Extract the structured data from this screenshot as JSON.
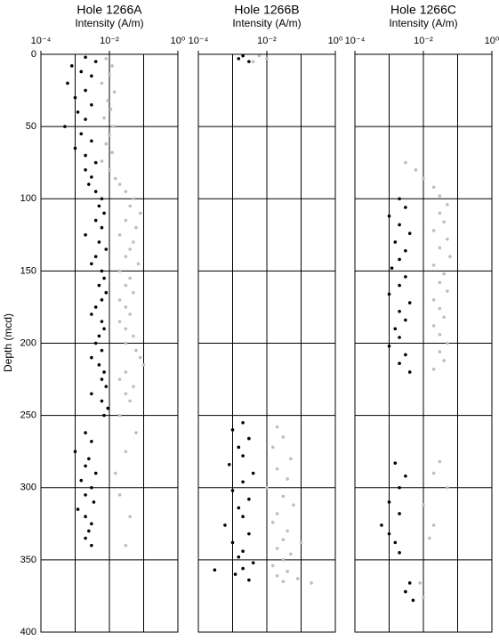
{
  "chart_data": [
    {
      "type": "scatter",
      "title": "Hole 1266A",
      "xlabel": "Intensity (A/m)",
      "ylabel": "Depth (mcd)",
      "xscale": "log",
      "xlim": [
        0.0001,
        1
      ],
      "xticks": [
        {
          "value": 0.0001,
          "label": "10⁻⁴"
        },
        {
          "value": 0.01,
          "label": "10⁻²"
        },
        {
          "value": 1,
          "label": "10⁰"
        }
      ],
      "xgrid": [
        0.001,
        0.01,
        0.1
      ],
      "ylim": [
        0,
        400
      ],
      "y_inverted": true,
      "yticks": [
        0,
        50,
        100,
        150,
        200,
        250,
        300,
        350,
        400
      ],
      "grid": true,
      "series": [
        {
          "color": "#bdbdbd",
          "x": [
            0.008,
            0.012,
            0.01,
            0.006,
            0.014,
            0.009,
            0.011,
            0.007,
            0.013,
            0.01,
            0.008,
            0.012,
            0.006,
            0.01,
            0.015,
            0.02,
            0.03,
            0.05,
            0.04,
            0.08,
            0.03,
            0.06,
            0.02,
            0.05,
            0.04,
            0.03,
            0.07,
            0.02,
            0.04,
            0.03,
            0.05,
            0.02,
            0.03,
            0.04,
            0.02,
            0.03,
            0.05,
            0.03,
            0.06,
            0.08,
            0.1,
            0.03,
            0.02,
            0.05,
            0.03,
            0.04,
            0.02,
            0.06,
            0.03,
            0.015,
            0.02,
            0.04,
            0.03
          ],
          "y": [
            3,
            8,
            14,
            20,
            26,
            32,
            38,
            44,
            50,
            56,
            62,
            68,
            74,
            80,
            86,
            90,
            95,
            100,
            105,
            110,
            115,
            120,
            125,
            130,
            135,
            140,
            145,
            150,
            155,
            160,
            165,
            170,
            175,
            180,
            185,
            190,
            195,
            200,
            205,
            210,
            215,
            220,
            225,
            230,
            235,
            240,
            250,
            262,
            275,
            290,
            305,
            320,
            340
          ]
        },
        {
          "color": "#000000",
          "x": [
            0.002,
            0.004,
            0.0008,
            0.0015,
            0.003,
            0.0006,
            0.002,
            0.001,
            0.003,
            0.0012,
            0.002,
            0.0005,
            0.0015,
            0.003,
            0.001,
            0.002,
            0.004,
            0.002,
            0.003,
            0.0025,
            0.004,
            0.006,
            0.005,
            0.007,
            0.004,
            0.006,
            0.002,
            0.005,
            0.008,
            0.004,
            0.003,
            0.006,
            0.007,
            0.005,
            0.008,
            0.006,
            0.004,
            0.003,
            0.006,
            0.007,
            0.005,
            0.004,
            0.006,
            0.003,
            0.005,
            0.007,
            0.006,
            0.008,
            0.003,
            0.006,
            0.009,
            0.007,
            0.002,
            0.003,
            0.001,
            0.0025,
            0.002,
            0.004,
            0.0015,
            0.003,
            0.002,
            0.0035,
            0.0012,
            0.002,
            0.003,
            0.0025,
            0.002,
            0.003
          ],
          "y": [
            2,
            5,
            8,
            12,
            15,
            20,
            25,
            30,
            35,
            40,
            45,
            50,
            55,
            60,
            65,
            70,
            75,
            80,
            85,
            90,
            95,
            100,
            105,
            110,
            115,
            120,
            125,
            130,
            135,
            140,
            145,
            150,
            155,
            160,
            165,
            170,
            175,
            180,
            185,
            190,
            195,
            200,
            205,
            210,
            215,
            220,
            225,
            230,
            235,
            240,
            245,
            250,
            262,
            268,
            275,
            280,
            285,
            290,
            295,
            300,
            305,
            310,
            315,
            320,
            325,
            330,
            335,
            340
          ]
        }
      ]
    },
    {
      "type": "scatter",
      "title": "Hole 1266B",
      "xlabel": "Intensity (A/m)",
      "xscale": "log",
      "xlim": [
        0.0001,
        1
      ],
      "xticks": [
        {
          "value": 0.0001,
          "label": "10⁻⁴"
        },
        {
          "value": 0.01,
          "label": "10⁻²"
        },
        {
          "value": 1,
          "label": "10⁰"
        }
      ],
      "xgrid": [
        0.001,
        0.01,
        0.1
      ],
      "ylim": [
        0,
        400
      ],
      "y_inverted": true,
      "yticks": [
        50,
        100,
        150,
        200,
        250,
        300,
        350
      ],
      "grid": true,
      "series": [
        {
          "color": "#bdbdbd",
          "x": [
            0.006,
            0.01,
            0.004,
            0.02,
            0.03,
            0.015,
            0.05,
            0.02,
            0.04,
            0.01,
            0.03,
            0.06,
            0.02,
            0.015,
            0.04,
            0.03,
            0.1,
            0.02,
            0.05,
            0.03,
            0.015,
            0.04,
            0.02,
            0.08,
            0.03,
            0.2
          ],
          "y": [
            1,
            3,
            5,
            258,
            265,
            272,
            280,
            287,
            294,
            300,
            306,
            312,
            318,
            324,
            330,
            336,
            338,
            342,
            346,
            350,
            354,
            358,
            361,
            363,
            365,
            366
          ]
        },
        {
          "color": "#000000",
          "x": [
            0.002,
            0.0015,
            0.003,
            0.002,
            0.001,
            0.003,
            0.0015,
            0.002,
            0.0008,
            0.004,
            0.002,
            0.001,
            0.003,
            0.0015,
            0.002,
            0.0006,
            0.003,
            0.001,
            0.002,
            0.0015,
            0.004,
            0.002,
            0.0012,
            0.003,
            0.0003
          ],
          "y": [
            1,
            3,
            5,
            255,
            260,
            266,
            272,
            278,
            284,
            290,
            296,
            302,
            308,
            314,
            320,
            326,
            332,
            338,
            344,
            348,
            352,
            356,
            360,
            364,
            357
          ]
        }
      ]
    },
    {
      "type": "scatter",
      "title": "Hole 1266C",
      "xlabel": "Intensity (A/m)",
      "xscale": "log",
      "xlim": [
        0.0001,
        1
      ],
      "xticks": [
        {
          "value": 0.0001,
          "label": "10⁻⁴"
        },
        {
          "value": 0.01,
          "label": "10⁻²"
        },
        {
          "value": 1,
          "label": "10⁰"
        }
      ],
      "xgrid": [
        0.001,
        0.01,
        0.1
      ],
      "ylim": [
        0,
        400
      ],
      "y_inverted": true,
      "yticks": [
        50,
        100,
        150,
        200,
        250,
        300,
        350
      ],
      "grid": true,
      "series": [
        {
          "color": "#bdbdbd",
          "x": [
            0.003,
            0.006,
            0.01,
            0.02,
            0.03,
            0.05,
            0.03,
            0.04,
            0.02,
            0.05,
            0.03,
            0.06,
            0.02,
            0.04,
            0.03,
            0.05,
            0.02,
            0.03,
            0.04,
            0.02,
            0.03,
            0.05,
            0.03,
            0.04,
            0.02,
            0.03,
            0.02,
            0.05,
            0.01,
            0.02,
            0.015,
            0.008,
            0.01
          ],
          "y": [
            75,
            80,
            86,
            92,
            98,
            104,
            110,
            116,
            122,
            128,
            134,
            140,
            146,
            152,
            158,
            164,
            170,
            176,
            182,
            188,
            194,
            200,
            206,
            212,
            218,
            282,
            290,
            300,
            312,
            326,
            335,
            366,
            376
          ]
        },
        {
          "color": "#000000",
          "x": [
            0.002,
            0.003,
            0.001,
            0.002,
            0.004,
            0.0015,
            0.003,
            0.002,
            0.0012,
            0.003,
            0.002,
            0.001,
            0.004,
            0.002,
            0.003,
            0.0015,
            0.002,
            0.001,
            0.003,
            0.002,
            0.004,
            0.0015,
            0.003,
            0.002,
            0.001,
            0.002,
            0.0006,
            0.001,
            0.0015,
            0.002,
            0.004,
            0.003,
            0.005
          ],
          "y": [
            100,
            106,
            112,
            118,
            124,
            130,
            136,
            142,
            148,
            154,
            160,
            166,
            172,
            178,
            184,
            190,
            196,
            202,
            208,
            214,
            220,
            283,
            292,
            300,
            310,
            318,
            326,
            332,
            338,
            345,
            366,
            372,
            378
          ]
        }
      ]
    }
  ]
}
